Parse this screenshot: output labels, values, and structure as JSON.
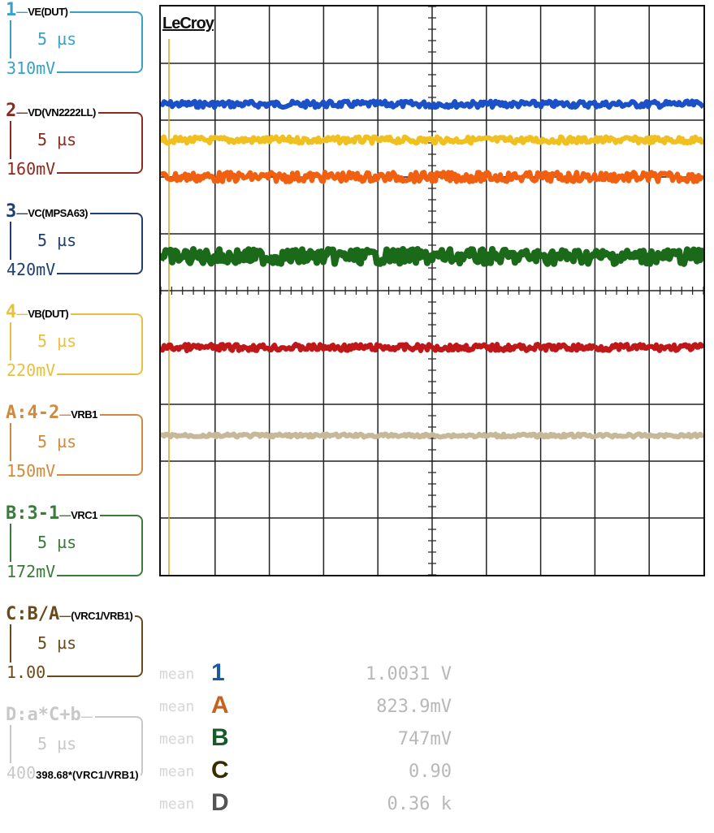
{
  "brand": "LeCroy",
  "channels": [
    {
      "id": "1",
      "ops": "",
      "name": "VE(DUT)",
      "tdiv": "5 µs",
      "vdiv": "310mV",
      "extra": "",
      "color": "#3aa0c8"
    },
    {
      "id": "2",
      "ops": "",
      "name": "VD(VN2222LL)",
      "tdiv": "5 µs",
      "vdiv": "160mV",
      "extra": "",
      "color": "#8a2a20"
    },
    {
      "id": "3",
      "ops": "",
      "name": "VC(MPSA63)",
      "tdiv": "5 µs",
      "vdiv": "420mV",
      "extra": "",
      "color": "#1f3f6f"
    },
    {
      "id": "4",
      "ops": "",
      "name": "VB(DUT)",
      "tdiv": "5 µs",
      "vdiv": "220mV",
      "extra": "",
      "color": "#e8c040"
    },
    {
      "id": "A",
      "ops": ":4-2",
      "name": "VRB1",
      "tdiv": "5 µs",
      "vdiv": "150mV",
      "extra": "",
      "color": "#d08a40"
    },
    {
      "id": "B",
      "ops": ":3-1",
      "name": "VRC1",
      "tdiv": "5 µs",
      "vdiv": "172mV",
      "extra": "",
      "color": "#3a7a3a"
    },
    {
      "id": "C",
      "ops": ":B/A",
      "name": "(VRC1/VRB1)",
      "tdiv": "5 µs",
      "vdiv": "1.00",
      "extra": "",
      "color": "#6a4a1a"
    },
    {
      "id": "D",
      "ops": ":a*C+b",
      "name": "",
      "tdiv": "5 µs",
      "vdiv": "400",
      "extra": "398.68*(VRC1/VRB1)",
      "color": "#c8c8c8"
    }
  ],
  "measurements": [
    {
      "label": "mean",
      "channel": "1",
      "value": "1.0031 V",
      "color": "#1a5aa0"
    },
    {
      "label": "mean",
      "channel": "A",
      "value": "823.9mV",
      "color": "#c86020"
    },
    {
      "label": "mean",
      "channel": "B",
      "value": "747mV",
      "color": "#1a5a2a"
    },
    {
      "label": "mean",
      "channel": "C",
      "value": "0.90",
      "color": "#3a2a00"
    },
    {
      "label": "mean",
      "channel": "D",
      "value": "0.36 k",
      "color": "#555555"
    }
  ],
  "traces": [
    {
      "name": "trace-1",
      "color": "#1a50c8",
      "level": 1.72
    },
    {
      "name": "trace-4",
      "color": "#f0c020",
      "level": 2.35
    },
    {
      "name": "trace-A",
      "color": "#f06010",
      "level": 3.0
    },
    {
      "name": "trace-B",
      "color": "#1a6a1a",
      "level": 4.4
    },
    {
      "name": "trace-2",
      "color": "#c01818",
      "level": 6.0
    },
    {
      "name": "trace-D",
      "color": "#c8b89a",
      "level": 7.55
    }
  ],
  "grid": {
    "divisions_x": 10,
    "divisions_y": 10
  }
}
